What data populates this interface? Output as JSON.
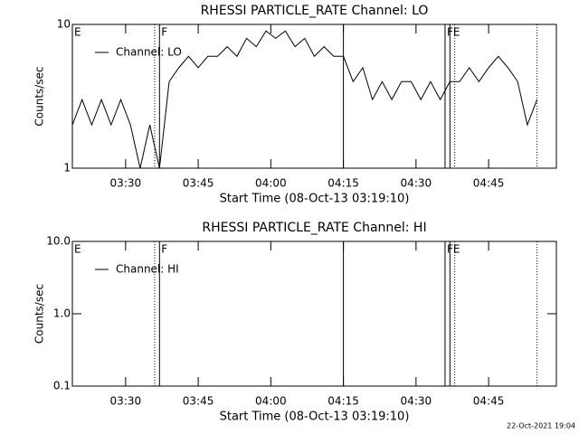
{
  "chart_data": [
    {
      "type": "line",
      "title": "RHESSI PARTICLE_RATE Channel: LO",
      "xlabel": "Start Time (08-Oct-13 03:19:10)",
      "ylabel": "Counts/sec",
      "log_y": true,
      "ylim": [
        1,
        10
      ],
      "yticks": [
        1,
        10
      ],
      "xlim": [
        "03:19",
        "04:59"
      ],
      "xticks": [
        "03:30",
        "03:45",
        "04:00",
        "04:15",
        "04:30",
        "04:45"
      ],
      "legend": "upper left",
      "x": [
        "03:19",
        "03:21",
        "03:23",
        "03:25",
        "03:27",
        "03:29",
        "03:31",
        "03:33",
        "03:35",
        "03:37",
        "03:39",
        "03:41",
        "03:43",
        "03:45",
        "03:47",
        "03:49",
        "03:51",
        "03:53",
        "03:55",
        "03:57",
        "03:59",
        "04:01",
        "04:03",
        "04:05",
        "04:07",
        "04:09",
        "04:11",
        "04:13",
        "04:15",
        "04:17",
        "04:19",
        "04:21",
        "04:23",
        "04:25",
        "04:27",
        "04:29",
        "04:31",
        "04:33",
        "04:35",
        "04:37",
        "04:39",
        "04:41",
        "04:43",
        "04:45",
        "04:47",
        "04:49",
        "04:51",
        "04:53",
        "04:55"
      ],
      "series": [
        {
          "name": "Channel: LO",
          "color": "#000000",
          "values": [
            2,
            3,
            2,
            3,
            2,
            3,
            2,
            1,
            2,
            1,
            4,
            5,
            6,
            5,
            6,
            6,
            7,
            6,
            8,
            7,
            9,
            8,
            9,
            7,
            8,
            6,
            7,
            6,
            6,
            4,
            5,
            3,
            4,
            3,
            4,
            4,
            3,
            4,
            3,
            4,
            4,
            5,
            4,
            5,
            6,
            5,
            4,
            2,
            3
          ]
        }
      ],
      "markers": [
        {
          "x": "03:36",
          "style": "dotted"
        },
        {
          "x": "03:37",
          "style": "solid"
        },
        {
          "x": "04:15",
          "style": "solid"
        },
        {
          "x": "04:36",
          "style": "solid"
        },
        {
          "x": "04:37",
          "style": "solid"
        },
        {
          "x": "04:38",
          "style": "dotted"
        },
        {
          "x": "04:55",
          "style": "dotted"
        }
      ],
      "annotations": [
        {
          "x": "03:19",
          "text": "E"
        },
        {
          "x": "03:37",
          "text": "F"
        },
        {
          "x": "04:36",
          "text": "FE"
        }
      ]
    },
    {
      "type": "line",
      "title": "RHESSI PARTICLE_RATE Channel: HI",
      "xlabel": "Start Time (08-Oct-13 03:19:10)",
      "ylabel": "Counts/sec",
      "log_y": true,
      "ylim": [
        0.1,
        10
      ],
      "yticks": [
        0.1,
        {
          "value": 1,
          "label": "1.0"
        },
        {
          "value": 10,
          "label": "10.0"
        }
      ],
      "xlim": [
        "03:19",
        "04:59"
      ],
      "xticks": [
        "03:30",
        "03:45",
        "04:00",
        "04:15",
        "04:30",
        "04:45"
      ],
      "legend": "upper left",
      "x": [],
      "series": [
        {
          "name": "Channel: HI",
          "color": "#000000",
          "values": []
        }
      ],
      "markers": [
        {
          "x": "03:36",
          "style": "dotted"
        },
        {
          "x": "03:37",
          "style": "solid"
        },
        {
          "x": "04:15",
          "style": "solid"
        },
        {
          "x": "04:36",
          "style": "solid"
        },
        {
          "x": "04:37",
          "style": "solid"
        },
        {
          "x": "04:38",
          "style": "dotted"
        },
        {
          "x": "04:55",
          "style": "dotted"
        }
      ],
      "annotations": [
        {
          "x": "03:19",
          "text": "E"
        },
        {
          "x": "03:37",
          "text": "F"
        },
        {
          "x": "04:36",
          "text": "FE"
        }
      ]
    }
  ],
  "footer": "22-Oct-2021 19:04"
}
